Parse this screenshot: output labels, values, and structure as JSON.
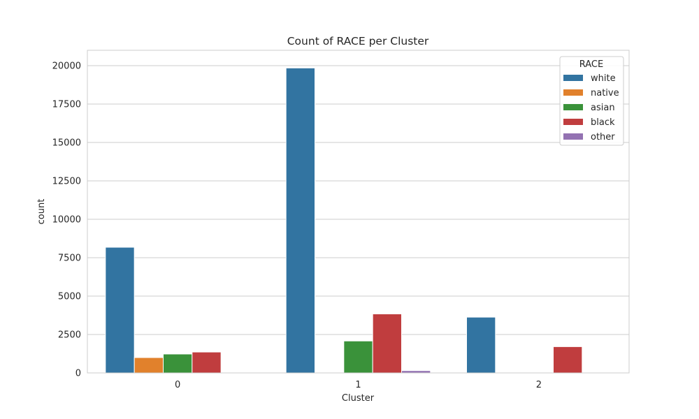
{
  "chart_data": {
    "type": "bar",
    "title": "Count of RACE per Cluster",
    "xlabel": "Cluster",
    "ylabel": "count",
    "ylim": [
      0,
      21000
    ],
    "yticks": [
      0,
      2500,
      5000,
      7500,
      10000,
      12500,
      15000,
      17500,
      20000
    ],
    "categories": [
      "0",
      "1",
      "2"
    ],
    "grid": true,
    "legend": {
      "title": "RACE",
      "placement": "top-right"
    },
    "series": [
      {
        "name": "white",
        "color": "#3274a1",
        "values": [
          8180,
          19850,
          3630
        ]
      },
      {
        "name": "native",
        "color": "#e1812c",
        "values": [
          1000,
          0,
          0
        ]
      },
      {
        "name": "asian",
        "color": "#3a923a",
        "values": [
          1230,
          2080,
          0
        ]
      },
      {
        "name": "black",
        "color": "#c03d3e",
        "values": [
          1360,
          3840,
          1710
        ]
      },
      {
        "name": "other",
        "color": "#9372b2",
        "values": [
          0,
          150,
          0
        ]
      }
    ]
  }
}
